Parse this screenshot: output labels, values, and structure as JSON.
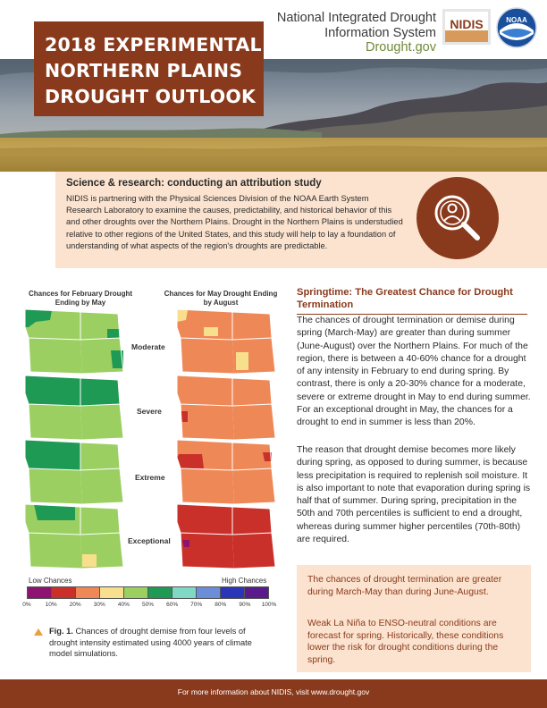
{
  "header": {
    "title_lines": [
      "2018 EXPERIMENTAL",
      "NORTHERN PLAINS",
      "DROUGHT OUTLOOK"
    ],
    "org_line1": "National Integrated Drought",
    "org_line2": "Information System",
    "org_url": "Drought.gov",
    "nidis_logo_text": "NIDIS",
    "noaa_logo_text": "NOAA"
  },
  "science": {
    "title": "Science & research: conducting an attribution study",
    "body": "NIDIS is partnering with the Physical Sciences Division of the NOAA Earth System Research Laboratory to examine the causes, predictability, and historical behavior of this and other droughts over the Northern Plains. Drought in the Northern Plains is understudied relative to other regions of the United States, and this study will help to lay a foundation of understanding of what aspects of the region's droughts are predictable.",
    "icon": "magnifying-glass-person-icon"
  },
  "figure": {
    "left_heading": "Chances for February Drought Ending by May",
    "right_heading": "Chances for May Drought Ending by August",
    "row_labels": [
      "Moderate",
      "Severe",
      "Extreme",
      "Exceptional"
    ],
    "scale_low": "Low Chances",
    "scale_high": "High Chances",
    "scale_ticks": [
      "0%",
      "10%",
      "20%",
      "30%",
      "40%",
      "50%",
      "60%",
      "70%",
      "80%",
      "90%",
      "100%"
    ],
    "scale_colors": [
      "#8e1270",
      "#c9302a",
      "#ef8857",
      "#f8df8e",
      "#9bcf62",
      "#1f9a55",
      "#7fd9c4",
      "#6c8ed9",
      "#2a35b8",
      "#5a1a8c"
    ],
    "caption_label": "Fig. 1.",
    "caption_text": " Chances of drought demise from four levels of drought intensity estimated using 4000 years of climate model simulations."
  },
  "article": {
    "title": "Springtime: The Greatest Chance for Drought Termination",
    "para1": "The chances of drought termination or demise during spring (March-May) are greater than during summer (June-August) over the Northern Plains. For much of the region, there is between a 40-60% chance for a drought of any intensity in February to end during spring. By contrast, there is only a 20-30% chance for a moderate, severe or extreme drought in May to end during summer.  For an exceptional drought in May, the chances for a drought to end in summer is less than 20%.",
    "para2": "The reason that drought demise becomes more likely during spring, as opposed to during summer, is because less precipitation is required to replenish soil moisture. It is also important to note that evaporation during spring is half that of summer. During spring, precipitation in the 50th and 70th percentiles is sufficient to end a drought, whereas during summer higher percentiles (70th-80th) are required.",
    "callout1": "The chances of drought termination are greater during March-May than during June-August.",
    "callout2": "Weak La Niña to ENSO-neutral conditions are forecast for spring. Historically, these conditions lower the risk for drought conditions during the spring."
  },
  "footer": {
    "text": "For more information about NIDIS, visit www.drought.gov"
  },
  "colors": {
    "brand": "#8a3a1c",
    "callout_bg": "#fbe3cf",
    "accent": "#e8a03c"
  }
}
